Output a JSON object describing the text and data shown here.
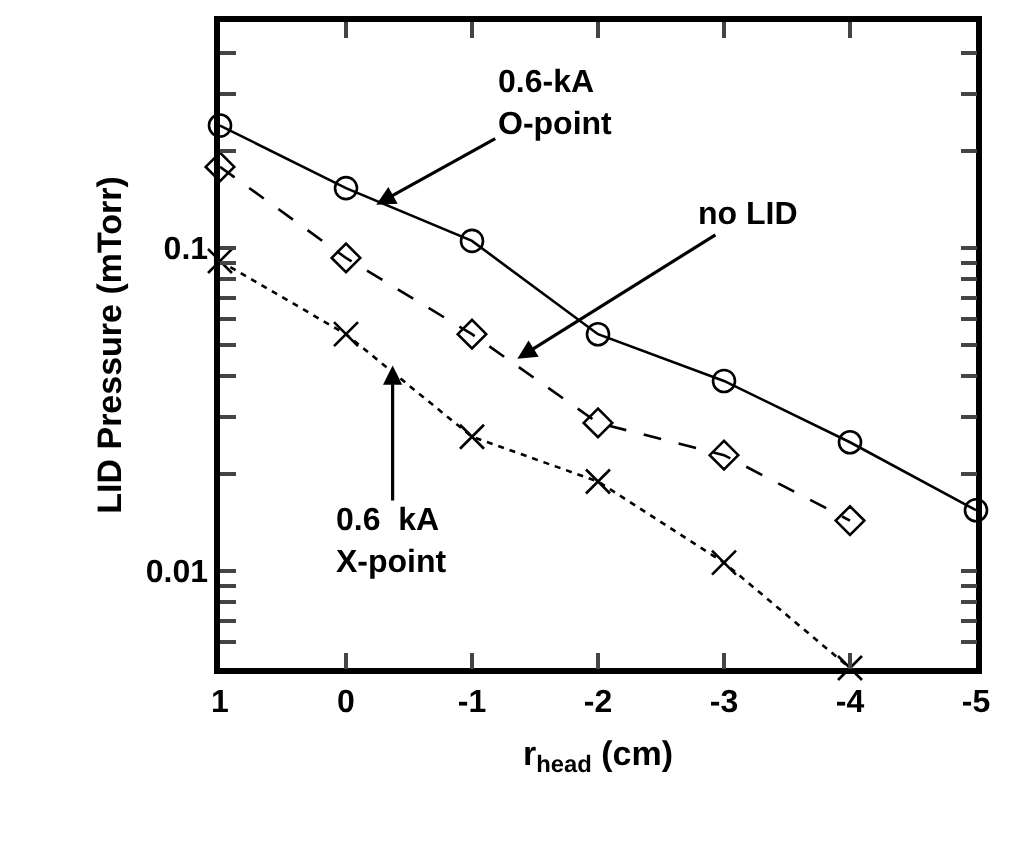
{
  "chart_data": {
    "type": "line",
    "xlabel": "r$_{head}$ (cm)",
    "ylabel": "LID Pressure (mTorr)",
    "x": [
      1,
      0,
      -1,
      -2,
      -3,
      -4,
      -5
    ],
    "xlim": [
      1,
      -5
    ],
    "xticks": [
      1,
      0,
      -1,
      -2,
      -3,
      -4,
      -5
    ],
    "ylim": [
      0.005,
      0.5
    ],
    "log": true,
    "yticks": [
      {
        "value": 0.006,
        "label": null
      },
      {
        "value": 0.007,
        "label": null
      },
      {
        "value": 0.008,
        "label": null
      },
      {
        "value": 0.009,
        "label": null
      },
      0.01,
      {
        "value": 0.02,
        "label": null
      },
      {
        "value": 0.03,
        "label": null
      },
      {
        "value": 0.04,
        "label": null
      },
      {
        "value": 0.05,
        "label": null
      },
      {
        "value": 0.06,
        "label": null
      },
      {
        "value": 0.07,
        "label": null
      },
      {
        "value": 0.08,
        "label": null
      },
      {
        "value": 0.09,
        "label": null
      },
      0.1,
      {
        "value": 0.2,
        "label": null
      },
      {
        "value": 0.3,
        "label": null
      },
      {
        "value": 0.4,
        "label": null
      },
      {
        "value": 0.5,
        "label": null
      }
    ],
    "series": [
      {
        "color": "#000000",
        "marker": "circle",
        "line_style": "solid",
        "values": [
          0.239,
          0.153,
          0.105,
          0.054,
          0.0387,
          0.025,
          0.0154
        ]
      },
      {
        "color": "#000000",
        "marker": "diamond",
        "line_style": "dashed",
        "values": [
          0.178,
          0.093,
          0.054,
          0.0287,
          0.0228,
          0.0143,
          null
        ]
      },
      {
        "color": "#000000",
        "marker": "cross",
        "line_style": "dotted",
        "values": [
          0.091,
          0.054,
          0.026,
          0.0189,
          0.0106,
          0.005,
          null
        ]
      }
    ],
    "annotations": [
      {
        "text": "0.6-kA\nO-point",
        "x": -0.24,
        "y": 0.136
      },
      {
        "text": "no LID",
        "x": -1.36,
        "y": 0.0453
      },
      {
        "text": "0.6  kA\nX-point",
        "x": -0.37,
        "y": 0.0432
      }
    ]
  }
}
